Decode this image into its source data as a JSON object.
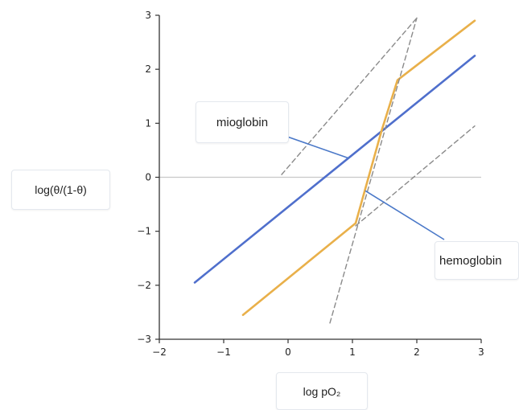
{
  "chart_data": {
    "type": "line",
    "title": "",
    "xlabel": "log pO₂",
    "ylabel": "log(θ/(1-θ)",
    "xlim": [
      -2,
      3
    ],
    "ylim": [
      -3,
      3
    ],
    "x_ticks": [
      "−2",
      "−1",
      "0",
      "1",
      "2",
      "3"
    ],
    "y_ticks": [
      "3",
      "2",
      "1",
      "0",
      "−1",
      "−2",
      "−3"
    ],
    "colors": {
      "mioglobin": "#4f6fcc",
      "hemoglobin": "#e9b04a",
      "reference": "#8a8a8a",
      "zero_line": "#c8c8c8",
      "axis": "#333333",
      "leader": "#4a78c8"
    },
    "series": [
      {
        "name": "mioglobin",
        "style": "solid",
        "x": [
          -1.45,
          2.9
        ],
        "y": [
          -1.95,
          2.25
        ]
      },
      {
        "name": "hemoglobin",
        "style": "solid",
        "x": [
          -0.7,
          1.05,
          1.45,
          1.7,
          2.9
        ],
        "y": [
          -2.55,
          -0.85,
          0.85,
          1.8,
          2.9
        ]
      },
      {
        "name": "",
        "style": "dashed",
        "x": [
          -0.1,
          2.0
        ],
        "y": [
          0.05,
          2.95
        ]
      },
      {
        "name": "",
        "style": "dashed",
        "x": [
          1.05,
          2.9
        ],
        "y": [
          -0.9,
          0.95
        ]
      },
      {
        "name": "",
        "style": "dashed",
        "x": [
          0.65,
          2.0
        ],
        "y": [
          -2.7,
          2.95
        ]
      }
    ],
    "annotations": [
      {
        "text": "mioglobin",
        "points_to": {
          "x": 0.95,
          "y": 0.35
        }
      },
      {
        "text": "hemoglobin",
        "points_to": {
          "x": 1.2,
          "y": -0.25
        }
      }
    ]
  }
}
